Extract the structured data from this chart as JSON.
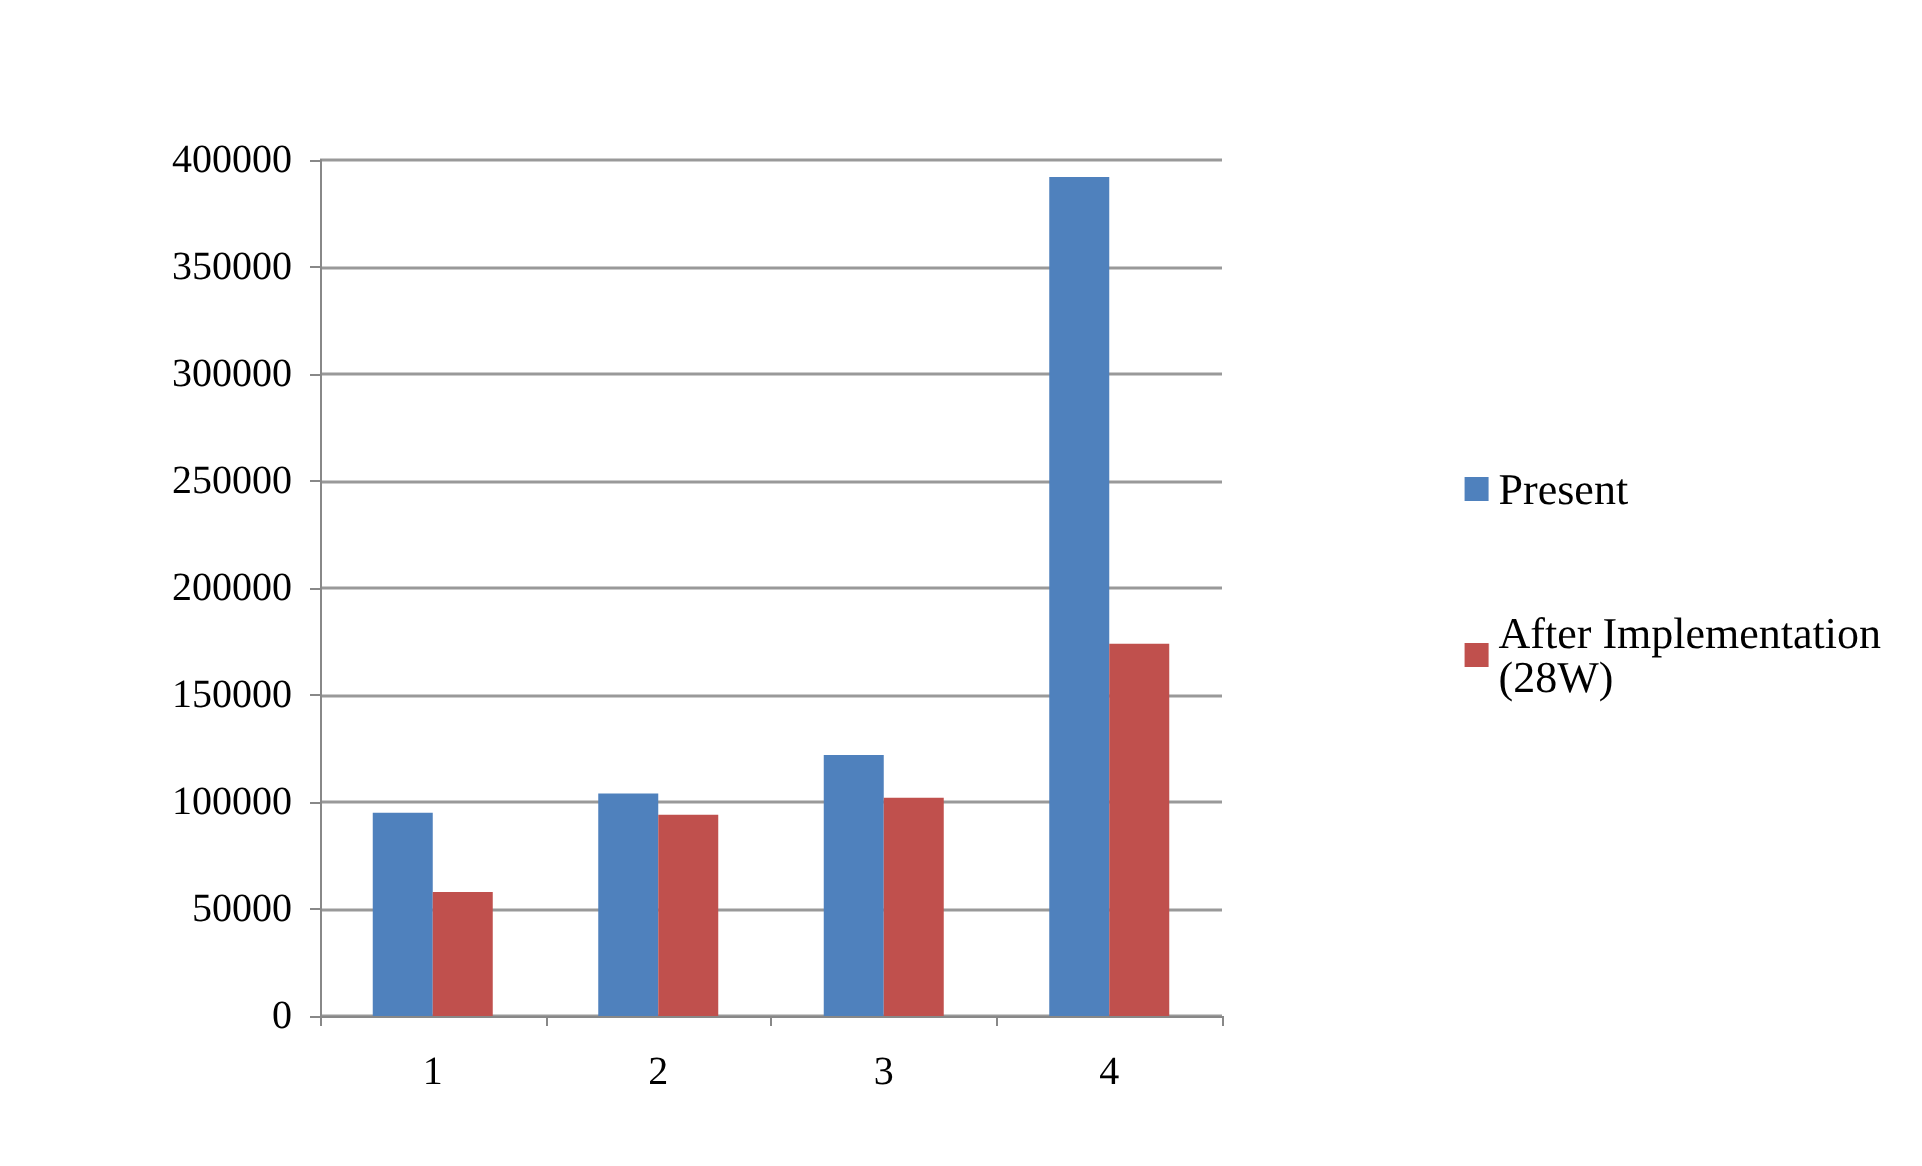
{
  "chart_data": {
    "type": "bar",
    "categories": [
      "1",
      "2",
      "3",
      "4"
    ],
    "series": [
      {
        "name": "Present",
        "color": "#4f81bd",
        "values": [
          95000,
          104000,
          122000,
          392000
        ]
      },
      {
        "name": "After Implementation (28W)",
        "color": "#c0504d",
        "values": [
          58000,
          94000,
          102000,
          174000
        ]
      }
    ],
    "ylim": [
      0,
      400000
    ],
    "yticks": [
      0,
      50000,
      100000,
      150000,
      200000,
      250000,
      300000,
      350000,
      400000
    ],
    "grid": "y",
    "legend": "right"
  }
}
